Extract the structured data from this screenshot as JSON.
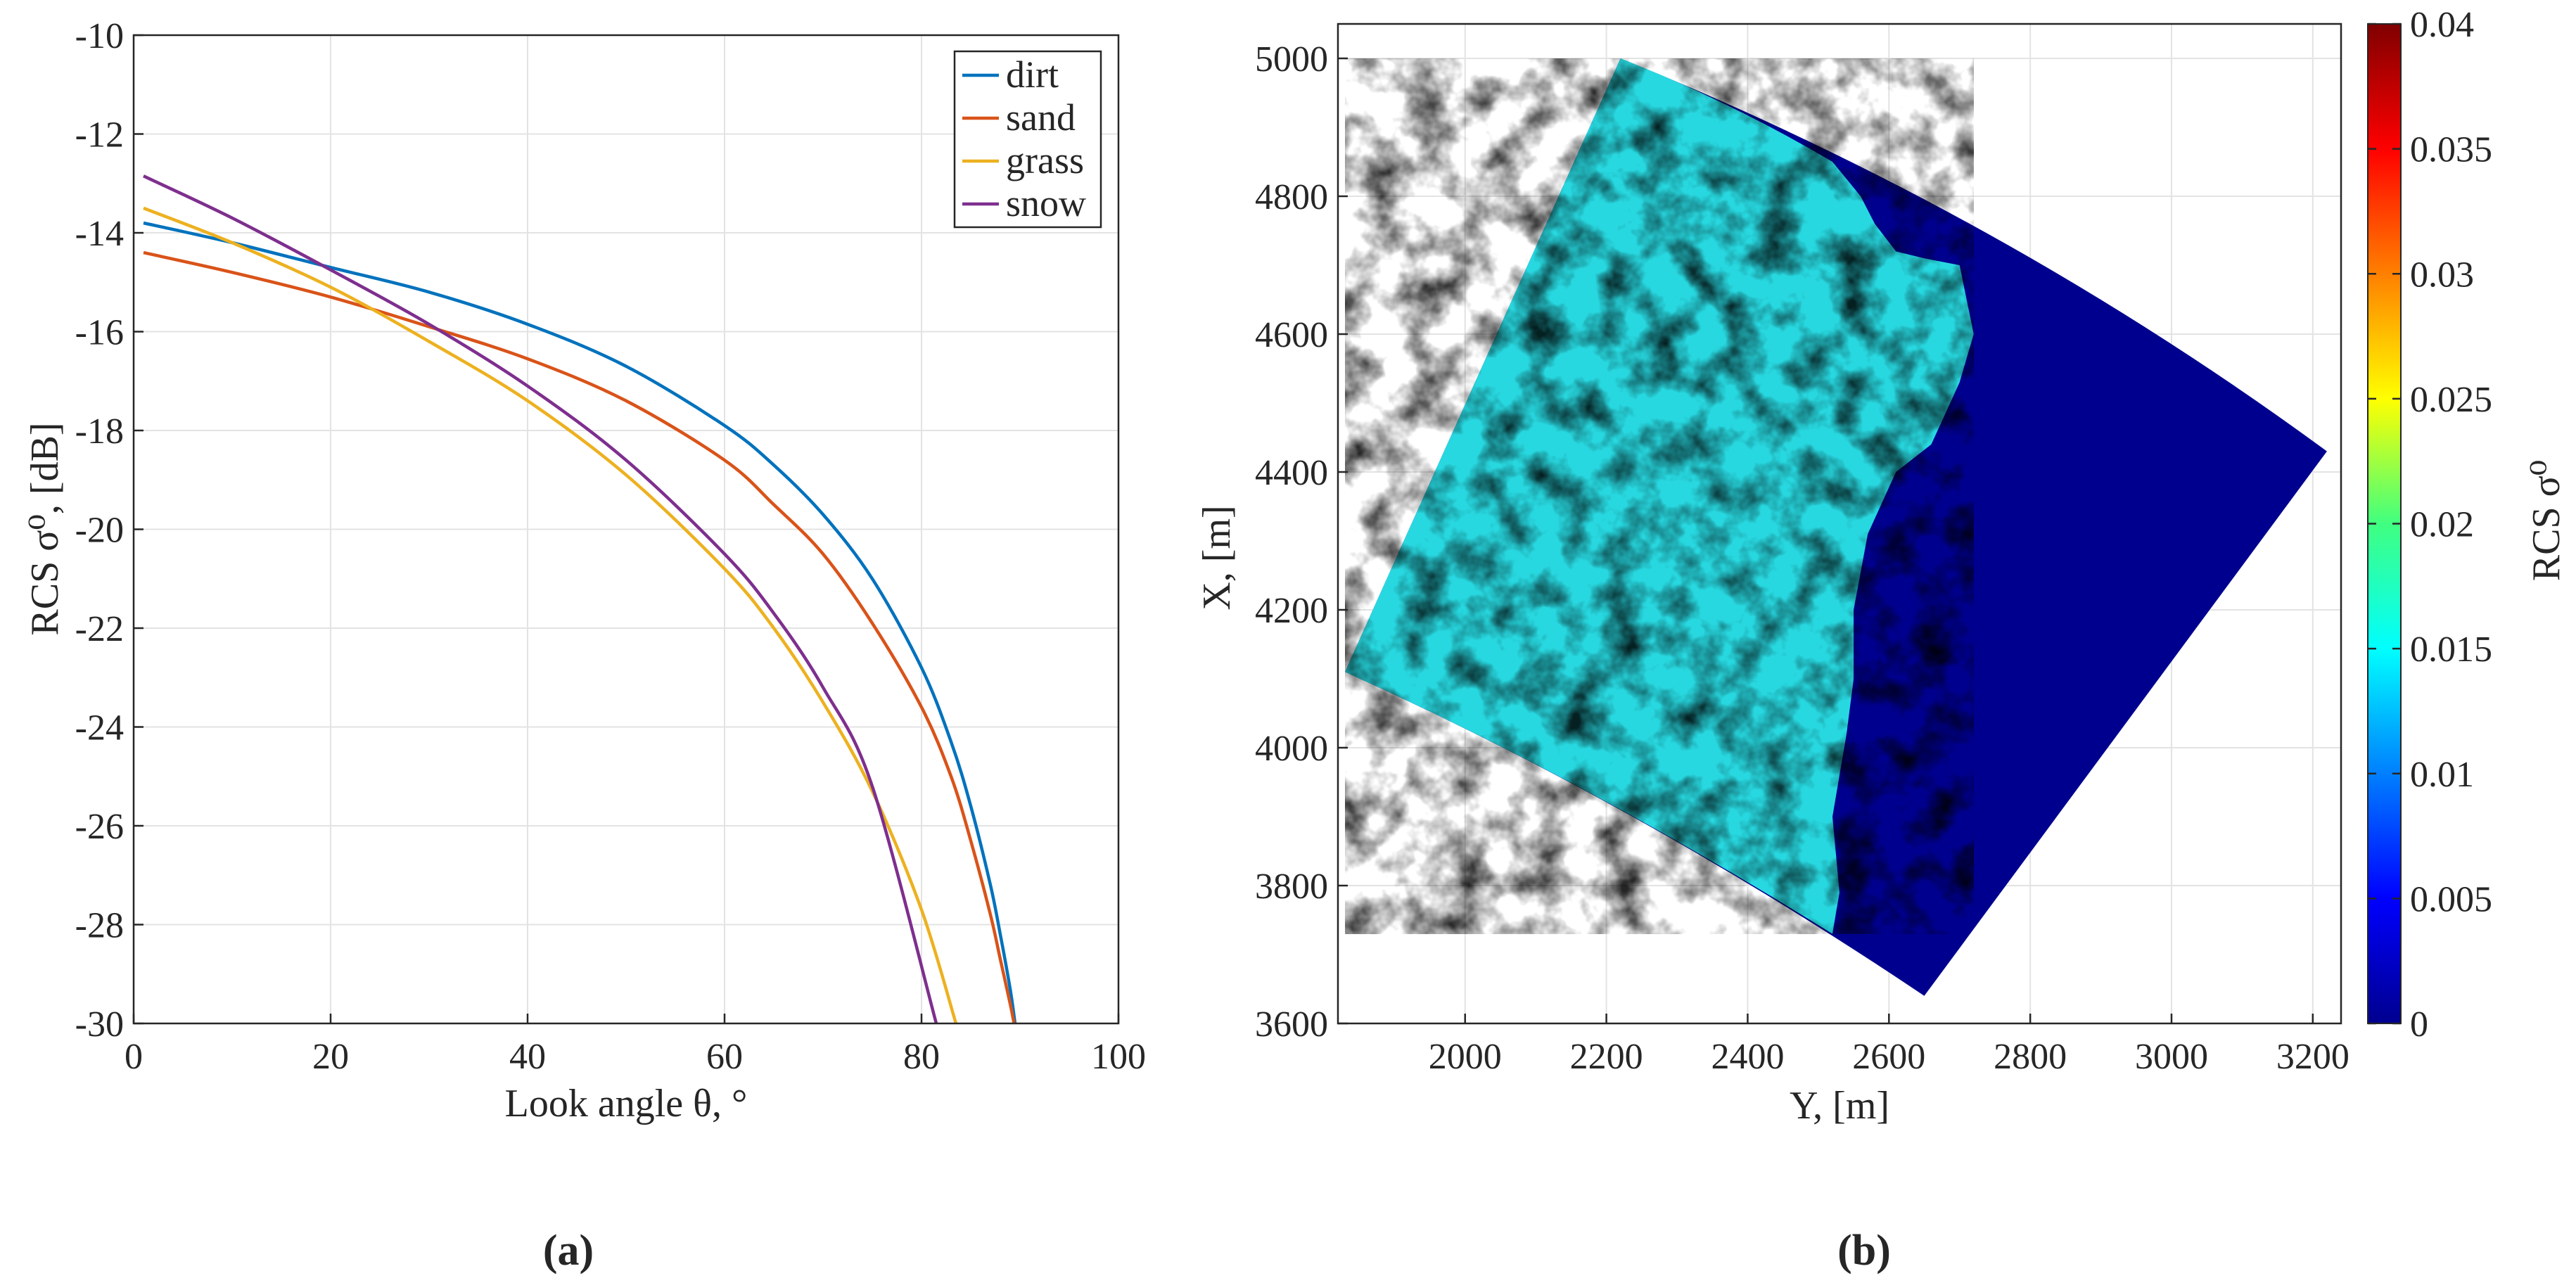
{
  "chart_data": [
    {
      "type": "line",
      "panel_label": "(a)",
      "xlabel": "Look angle θ, °",
      "ylabel": "RCS σ⁰, [dB]",
      "xlim": [
        0,
        100
      ],
      "ylim": [
        -30,
        -10
      ],
      "xticks": [
        0,
        20,
        40,
        60,
        80,
        100
      ],
      "yticks": [
        -10,
        -12,
        -14,
        -16,
        -18,
        -20,
        -22,
        -24,
        -26,
        -28,
        -30
      ],
      "grid": true,
      "legend_position": "top-right",
      "series": [
        {
          "name": "dirt",
          "color": "#0072BD",
          "x": [
            1,
            10,
            20,
            30,
            40,
            50,
            60,
            65,
            70,
            75,
            80,
            83,
            85,
            87,
            88,
            89,
            89.5
          ],
          "y": [
            -13.8,
            -14.2,
            -14.7,
            -15.2,
            -15.85,
            -16.7,
            -17.9,
            -18.7,
            -19.7,
            -21.0,
            -22.8,
            -24.3,
            -25.6,
            -27.2,
            -28.2,
            -29.3,
            -30
          ]
        },
        {
          "name": "sand",
          "color": "#D95319",
          "x": [
            1,
            10,
            20,
            30,
            40,
            50,
            60,
            65,
            70,
            75,
            80,
            83,
            85,
            87,
            88,
            89,
            89.4
          ],
          "y": [
            -14.4,
            -14.8,
            -15.3,
            -15.9,
            -16.55,
            -17.4,
            -18.6,
            -19.5,
            -20.5,
            -21.9,
            -23.6,
            -25.0,
            -26.3,
            -27.8,
            -28.7,
            -29.6,
            -30
          ]
        },
        {
          "name": "grass",
          "color": "#EDB120",
          "x": [
            1,
            10,
            20,
            30,
            40,
            50,
            60,
            65,
            70,
            75,
            80,
            83.5
          ],
          "y": [
            -13.5,
            -14.2,
            -15.1,
            -16.2,
            -17.4,
            -18.9,
            -20.8,
            -22.0,
            -23.5,
            -25.3,
            -27.7,
            -30
          ]
        },
        {
          "name": "snow",
          "color": "#7E2F8E",
          "x": [
            1,
            10,
            20,
            30,
            40,
            50,
            60,
            65,
            70,
            75,
            81.5
          ],
          "y": [
            -12.85,
            -13.7,
            -14.75,
            -15.85,
            -17.1,
            -18.6,
            -20.5,
            -21.7,
            -23.2,
            -25.2,
            -30
          ]
        }
      ]
    },
    {
      "type": "heatmap",
      "panel_label": "(b)",
      "xlabel": "Y, [m]",
      "ylabel": "X, [m]",
      "xlim": [
        1820,
        3240
      ],
      "ylim": [
        3600,
        5050
      ],
      "xticks": [
        2000,
        2200,
        2400,
        2600,
        2800,
        3000,
        3200
      ],
      "yticks": [
        3600,
        3800,
        4000,
        4200,
        4400,
        4600,
        4800,
        5000
      ],
      "grid": true,
      "colorbar": {
        "label": "RCS σ⁰",
        "range": [
          0,
          0.04
        ],
        "ticks": [
          "0",
          "0.005",
          "0.01",
          "0.015",
          "0.02",
          "0.025",
          "0.03",
          "0.035",
          "0.04"
        ],
        "colormap": "jet"
      },
      "sector_corners": {
        "top_left": [
          2220,
          5000
        ],
        "left": [
          1830,
          4110
        ],
        "bottom_right": [
          2650,
          3640
        ],
        "right": [
          3220,
          4430
        ]
      },
      "land_boundary": [
        [
          2520,
          4850
        ],
        [
          2560,
          4800
        ],
        [
          2580,
          4760
        ],
        [
          2610,
          4720
        ],
        [
          2650,
          4710
        ],
        [
          2700,
          4700
        ],
        [
          2720,
          4600
        ],
        [
          2700,
          4530
        ],
        [
          2660,
          4440
        ],
        [
          2610,
          4400
        ],
        [
          2570,
          4310
        ],
        [
          2550,
          4200
        ],
        [
          2550,
          4100
        ],
        [
          2540,
          4020
        ],
        [
          2520,
          3900
        ],
        [
          2530,
          3790
        ],
        [
          2520,
          3730
        ]
      ],
      "land_mean_value": 0.017,
      "sea_value": 0
    }
  ]
}
